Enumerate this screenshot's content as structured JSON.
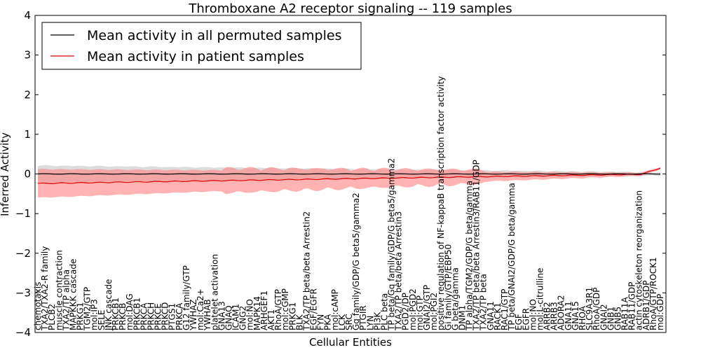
{
  "chart_data": {
    "type": "line",
    "title": "Thromboxane A2 receptor signaling -- 119 samples",
    "xlabel": "Cellular Entities",
    "ylabel": "Inferred Activity",
    "ylim": [
      -4,
      4
    ],
    "yticks": [
      "4",
      "3",
      "2",
      "1",
      "0",
      "−1",
      "−2",
      "−3",
      "−4"
    ],
    "legend": {
      "placement": "top-left",
      "entries": [
        {
          "name": "Mean activity in all permuted samples",
          "color": "#000000"
        },
        {
          "name": "Mean activity in patient samples",
          "color": "#ff0000"
        }
      ]
    },
    "colors": {
      "permuted_line": "#000000",
      "permuted_band": "#bfbfbf",
      "patient_line": "#dd0000",
      "patient_band": "#ff8080"
    },
    "entities": [
      "chemotaxis",
      "TXA2/TXA2-R family",
      "PLCB2",
      "muscle contraction",
      "TXA2/TP alpha",
      "MAPKKK cascade",
      "PRKG1",
      "TGM2/GTP",
      "mol:IP3",
      "SELE",
      "JNK cascade",
      "PRKCB1",
      "PRKCB",
      "mol:DAG",
      "PRKCB1",
      "PRKCA",
      "PRKCH",
      "PRKCE",
      "PRKCD",
      "PTGS1",
      "PRKCA",
      "G12 family/GTP",
      "YWHAZ",
      "mol:Ca2+",
      "YWHAB",
      "platelet activation",
      "GNA13",
      "GNAQ",
      "ICAM1",
      "GNG2",
      "mol:NO",
      "MAPK14",
      "ARHGEF1",
      "AKT1",
      "RhoA/GTP",
      "mol:cGMP",
      "PRKG1",
      "BLK",
      "TXA2/TP beta/beta Arrestin2",
      "EGF/EGFR",
      "FYN",
      "PKA",
      "mol:cAMP",
      "LCK",
      "SRC",
      "Gq family/GDP/G beta5/gamma2",
      "PTGIR",
      "LYN",
      "PI3K",
      "PLC beta",
      "TP beta/Gq family/GDP/G beta5/gamma2",
      "TXA2/TP beta/beta Arrestin3",
      "PGD2/DP",
      "mol:PGD2",
      "mol:GTP",
      "GNAI2/GTP",
      "mol:PGI2",
      "positive regulation of NF-kappaB transcription factor activity",
      "Gi family/GTP/EBP50",
      "G beta/gamma",
      "DNM1",
      "TP alpha/TGM2/GDP/G beta/gamma",
      "TXA2/TP beta/beta Arrestin3/RAB11/GDP",
      "TXA2/TP beta",
      "GNA11",
      "RACK1",
      "RAC1/GTP",
      "TP beta/GNAI2/GDP/G beta/gamma",
      "EGF",
      "EGFR",
      "mol:NO",
      "mol:L-citrulline",
      "ARRB2",
      "ARRB3",
      "ADORA2",
      "GNA11",
      "GNA15",
      "RHOA",
      "SLC9A3R1",
      "RhoA/GDP",
      "GNAI2",
      "GNB1",
      "GNB5",
      "RAB11A",
      "RAB11/GDP",
      "actin cytoskeleton reorganization",
      "ADRB1/GDP",
      "RhoA/GTP/ROCK1",
      "mol:GDP"
    ]
  }
}
